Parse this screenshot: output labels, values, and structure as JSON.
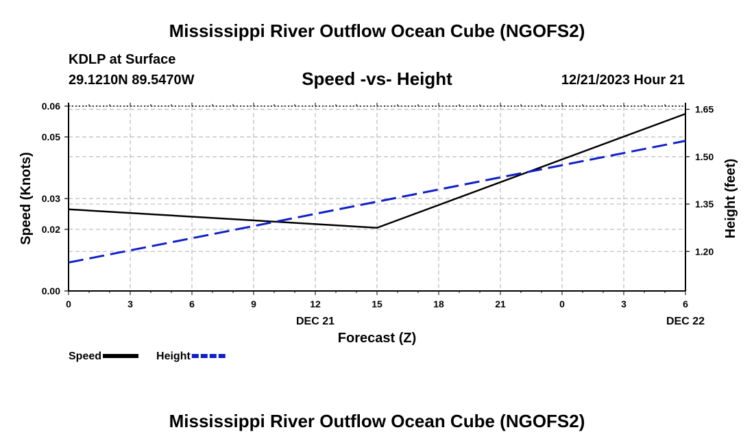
{
  "header": {
    "title": "Mississippi River Outflow Ocean Cube (NGOFS2)",
    "station": "KDLP at Surface",
    "coords": "29.1210N  89.5470W",
    "subtitle": "Speed -vs- Height",
    "timestamp": "12/21/2023 Hour 21"
  },
  "footer": {
    "title": "Mississippi River Outflow Ocean Cube (NGOFS2)"
  },
  "chart_data": {
    "type": "line",
    "xlabel": "Forecast (Z)",
    "x_ticks": [
      "0",
      "3",
      "6",
      "9",
      "12",
      "15",
      "18",
      "21",
      "0",
      "3",
      "6"
    ],
    "x_day_labels": [
      {
        "label": "DEC 21",
        "at_hour": 12
      },
      {
        "label": "DEC 22",
        "at_hour": 30
      }
    ],
    "xlim": [
      0,
      30
    ],
    "y_left": {
      "label": "Speed (Knots)",
      "lim": [
        0,
        0.06
      ],
      "ticks": [
        {
          "value": 0.0,
          "label": "0.00"
        },
        {
          "value": 0.02,
          "label": "0.02"
        },
        {
          "value": 0.03,
          "label": "0.03"
        },
        {
          "value": 0.05,
          "label": "0.05"
        },
        {
          "value": 0.06,
          "label": "0.06"
        }
      ]
    },
    "y_right": {
      "label": "Height (feet)",
      "lim": [
        1.075,
        1.66
      ],
      "ticks": [
        {
          "value": 1.2,
          "label": "1.20"
        },
        {
          "value": 1.35,
          "label": "1.35"
        },
        {
          "value": 1.5,
          "label": "1.50"
        },
        {
          "value": 1.65,
          "label": "1.65"
        }
      ]
    },
    "series": [
      {
        "name": "Speed",
        "axis": "left",
        "color": "#000000",
        "dash": false,
        "x": [
          0,
          15,
          30
        ],
        "values": [
          0.0265,
          0.0205,
          0.0575
        ]
      },
      {
        "name": "Height",
        "axis": "right",
        "color": "#1020c8",
        "dash": true,
        "x": [
          0,
          30
        ],
        "values": [
          1.165,
          1.55
        ]
      }
    ],
    "legend": {
      "placement": "bottom-left",
      "entries": [
        "Speed",
        "Height"
      ]
    },
    "grid": true
  }
}
